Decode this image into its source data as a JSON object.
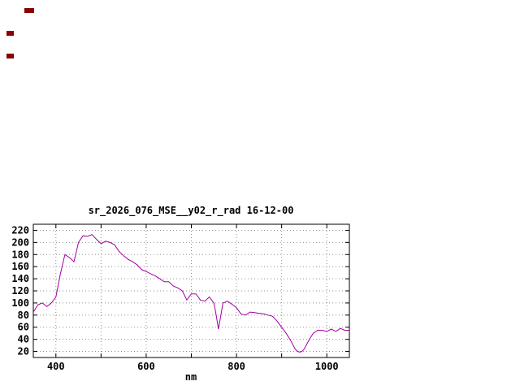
{
  "colors": {
    "line": "#a000a0",
    "grid": "#909090",
    "frame": "#000000",
    "text": "#000000",
    "stray": "#8b0000",
    "background": "#ffffff"
  },
  "chart_data": {
    "type": "line",
    "title": "sr_2026_076_MSE__y02_r_rad 16-12-00",
    "xlabel": "nm",
    "ylabel": "",
    "xlim": [
      350,
      1050
    ],
    "ylim": [
      10,
      230
    ],
    "xticks": [
      400,
      600,
      800,
      1000
    ],
    "xgrid": [
      400,
      500,
      600,
      700,
      800,
      900,
      1000
    ],
    "yticks": [
      20,
      40,
      60,
      80,
      100,
      120,
      140,
      160,
      180,
      200,
      220
    ],
    "grid": true,
    "legend": "none",
    "series": [
      {
        "name": "sr_2026_076_MSE__y02_r_rad",
        "color": "#a000a0",
        "x": [
          350,
          360,
          370,
          380,
          390,
          400,
          410,
          420,
          430,
          440,
          450,
          460,
          470,
          480,
          490,
          500,
          510,
          520,
          530,
          540,
          550,
          560,
          570,
          580,
          590,
          600,
          610,
          620,
          630,
          640,
          650,
          660,
          670,
          680,
          690,
          700,
          710,
          720,
          730,
          740,
          750,
          755,
          760,
          765,
          770,
          780,
          790,
          800,
          810,
          820,
          830,
          840,
          850,
          860,
          870,
          880,
          890,
          900,
          910,
          920,
          930,
          935,
          940,
          945,
          950,
          960,
          970,
          980,
          990,
          1000,
          1010,
          1020,
          1030,
          1040,
          1050
        ],
        "y": [
          85,
          97,
          100,
          94,
          100,
          110,
          148,
          180,
          175,
          168,
          200,
          211,
          210,
          213,
          205,
          198,
          202,
          200,
          196,
          185,
          178,
          172,
          168,
          163,
          155,
          152,
          148,
          145,
          140,
          135,
          135,
          128,
          125,
          120,
          105,
          115,
          115,
          105,
          103,
          110,
          100,
          80,
          57,
          78,
          100,
          103,
          98,
          92,
          82,
          80,
          85,
          84,
          83,
          82,
          80,
          78,
          70,
          60,
          50,
          38,
          24,
          20,
          19,
          20,
          24,
          38,
          50,
          55,
          55,
          53,
          57,
          53,
          58,
          55,
          55
        ]
      }
    ]
  }
}
